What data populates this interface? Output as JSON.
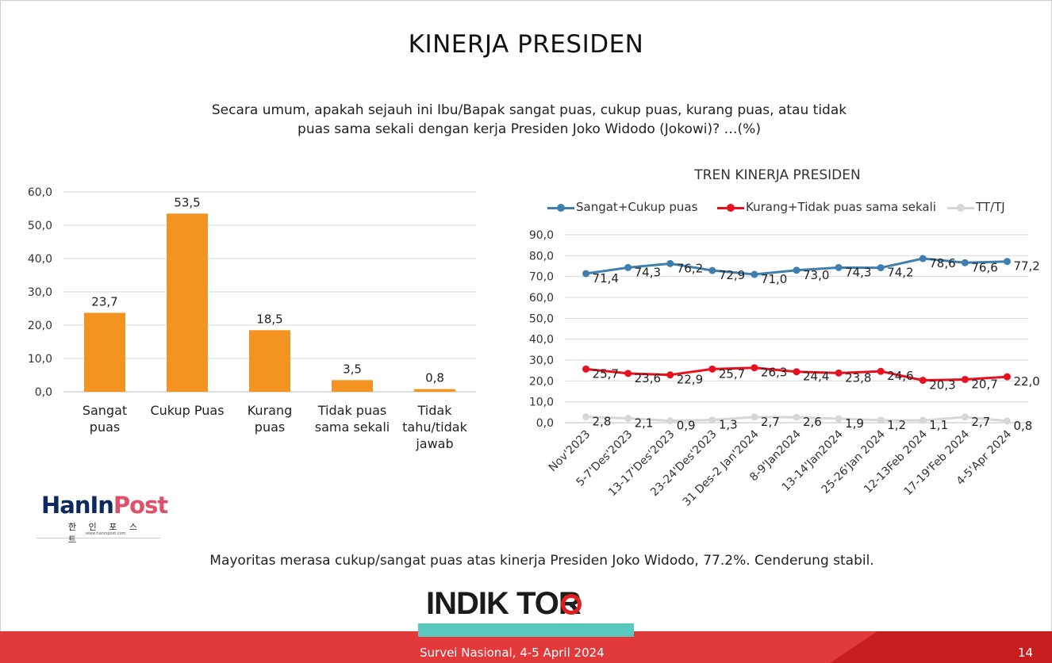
{
  "title": "KINERJA PRESIDEN",
  "question": {
    "line1": "Secara umum, apakah sejauh ini Ibu/Bapak sangat puas, cukup puas, kurang puas, atau tidak",
    "line2": "puas sama sekali dengan kerja Presiden Joko Widodo (Jokowi)? …(%)"
  },
  "conclusion": "Mayoritas merasa cukup/sangat puas atas kinerja Presiden Joko Widodo, 77.2%. Cenderung stabil.",
  "logos": {
    "hanin_part1": "HanIn",
    "hanin_part2": "Post",
    "hanin_korean": "한 인 포 스 트",
    "hanin_url": "www.haninpost.com",
    "indikator": "INDIK  TOR"
  },
  "footer": {
    "survey": "Survei Nasional, 4-5 April 2024",
    "page": "14"
  },
  "colors": {
    "bar": "#f39322",
    "series_positive": "#3f7fb0",
    "series_negative": "#e8101f",
    "series_dk": "#d6d6d6",
    "footer_red": "#e23a3a",
    "teal": "#5bc8c0"
  },
  "chart_data": [
    {
      "type": "bar",
      "title": "",
      "categories": [
        [
          "Sangat",
          "puas"
        ],
        [
          "Cukup Puas"
        ],
        [
          "Kurang",
          "puas"
        ],
        [
          "Tidak puas",
          "sama sekali"
        ],
        [
          "Tidak",
          "tahu/tidak",
          "jawab"
        ]
      ],
      "values": [
        23.7,
        53.5,
        18.5,
        3.5,
        0.8
      ],
      "value_labels": [
        "23,7",
        "53,5",
        "18,5",
        "3,5",
        "0,8"
      ],
      "ylim": [
        0,
        60
      ],
      "yticks": [
        "0,0",
        "10,0",
        "20,0",
        "30,0",
        "40,0",
        "50,0",
        "60,0"
      ],
      "grid": true
    },
    {
      "type": "line",
      "title": "TREN KINERJA PRESIDEN",
      "categories": [
        "Nov'2023",
        "5-7'Des'2023",
        "13-17'Des'2023",
        "23-24'Des'2023",
        "31 Des-2 Jan'2024",
        "8-9'Jan2024",
        "13-14'Jan2024",
        "25-26'Jan 2024",
        "12-13Feb 2024",
        "17-19'Feb 2024",
        "4-5'Apr 2024"
      ],
      "series": [
        {
          "name": "Sangat+Cukup puas",
          "values": [
            71.4,
            74.3,
            76.2,
            72.9,
            71.0,
            73.0,
            74.3,
            74.2,
            78.6,
            76.6,
            77.2
          ],
          "labels": [
            "71,4",
            "74,3",
            "76,2",
            "72,9",
            "71,0",
            "73,0",
            "74,3",
            "74,2",
            "78,6",
            "76,6",
            "77,2"
          ]
        },
        {
          "name": "Kurang+Tidak puas sama sekali",
          "values": [
            25.7,
            23.6,
            22.9,
            25.7,
            26.3,
            24.4,
            23.8,
            24.6,
            20.3,
            20.7,
            22.0
          ],
          "labels": [
            "25,7",
            "23,6",
            "22,9",
            "25,7",
            "26,3",
            "24,4",
            "23,8",
            "24,6",
            "20,3",
            "20,7",
            "22,0"
          ]
        },
        {
          "name": "TT/TJ",
          "values": [
            2.8,
            2.1,
            0.9,
            1.3,
            2.7,
            2.6,
            1.9,
            1.2,
            1.1,
            2.7,
            0.8
          ],
          "labels": [
            "2,8",
            "2,1",
            "0,9",
            "1,3",
            "2,7",
            "2,6",
            "1,9",
            "1,2",
            "1,1",
            "2,7",
            "0,8"
          ]
        }
      ],
      "ylim": [
        0,
        90
      ],
      "yticks": [
        "0,0",
        "10,0",
        "20,0",
        "30,0",
        "40,0",
        "50,0",
        "60,0",
        "70,0",
        "80,0",
        "90,0"
      ],
      "grid": true,
      "legend": "top"
    }
  ]
}
